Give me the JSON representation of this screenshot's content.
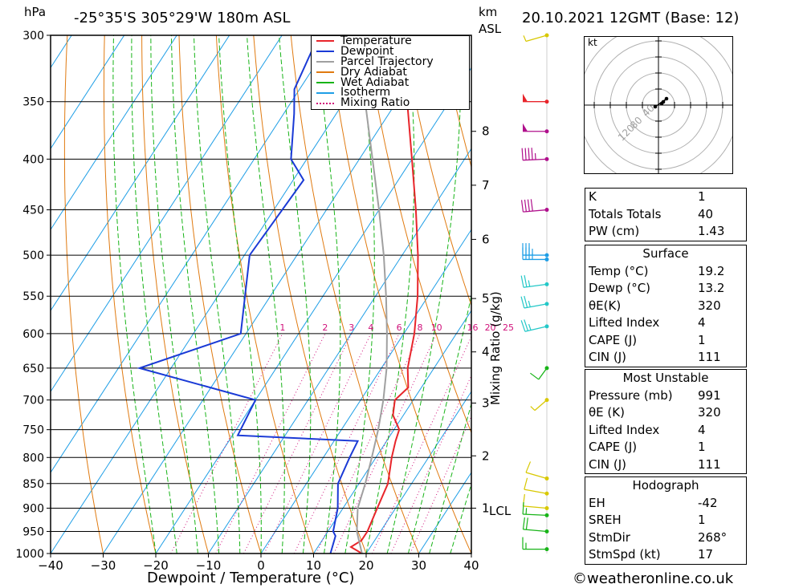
{
  "header": {
    "pressure_unit": "hPa",
    "location": "-25°35'S  305°29'W  180m  ASL",
    "height_unit_top": "km",
    "height_unit_bottom": "ASL",
    "datetime": "20.10.2021  12GMT  (Base: 12)"
  },
  "legend": [
    {
      "label": "Temperature",
      "color": "#e8252b",
      "style": "solid"
    },
    {
      "label": "Dewpoint",
      "color": "#1a3ad6",
      "style": "solid"
    },
    {
      "label": "Parcel Trajectory",
      "color": "#a0a0a0",
      "style": "solid"
    },
    {
      "label": "Dry Adiabat",
      "color": "#e07a10",
      "style": "solid"
    },
    {
      "label": "Wet Adiabat",
      "color": "#18b418",
      "style": "solid"
    },
    {
      "label": "Isotherm",
      "color": "#1e9ee6",
      "style": "solid"
    },
    {
      "label": "Mixing Ratio",
      "color": "#d0107a",
      "style": "dotted"
    }
  ],
  "chart_data": {
    "type": "line",
    "title": "-25°35'S  305°29'W  180m  ASL",
    "xlabel": "Dewpoint / Temperature (°C)",
    "ylabel": "hPa",
    "xlim": [
      -40,
      40
    ],
    "x_ticks": [
      -40,
      -30,
      -20,
      -10,
      0,
      10,
      20,
      30,
      40
    ],
    "pressure_levels": [
      300,
      350,
      400,
      450,
      500,
      550,
      600,
      650,
      700,
      750,
      800,
      850,
      900,
      950,
      1000
    ],
    "height_ticks_km": [
      {
        "label": "8",
        "p": 375
      },
      {
        "label": "7",
        "p": 425
      },
      {
        "label": "6",
        "p": 482
      },
      {
        "label": "5",
        "p": 553
      },
      {
        "label": "4",
        "p": 626
      },
      {
        "label": "3",
        "p": 705
      },
      {
        "label": "2",
        "p": 797
      },
      {
        "label": "1",
        "p": 900
      }
    ],
    "lcl_label": "LCL",
    "lcl_p": 900,
    "mixing_ratio_axis_label": "Mixing Ratio (g/kg)",
    "mixing_ratio_labels": [
      "1",
      "2",
      "3",
      "4",
      "6",
      "8",
      "10",
      "16",
      "20",
      "25"
    ],
    "series": [
      {
        "name": "Temperature",
        "color": "#e8252b",
        "points": [
          [
            1000,
            19.2
          ],
          [
            985,
            16.3
          ],
          [
            970,
            17.5
          ],
          [
            950,
            17.5
          ],
          [
            900,
            16.5
          ],
          [
            850,
            15.5
          ],
          [
            800,
            13
          ],
          [
            770,
            11.7
          ],
          [
            750,
            11
          ],
          [
            725,
            8
          ],
          [
            700,
            6.5
          ],
          [
            680,
            7.5
          ],
          [
            650,
            5
          ],
          [
            600,
            2
          ],
          [
            550,
            -2
          ],
          [
            500,
            -7
          ],
          [
            450,
            -13
          ],
          [
            400,
            -20
          ],
          [
            350,
            -28
          ],
          [
            300,
            -35
          ]
        ]
      },
      {
        "name": "Dewpoint",
        "color": "#1a3ad6",
        "points": [
          [
            1000,
            13.2
          ],
          [
            960,
            12
          ],
          [
            950,
            11
          ],
          [
            900,
            9
          ],
          [
            850,
            6
          ],
          [
            800,
            5
          ],
          [
            770,
            4.5
          ],
          [
            760,
            -19
          ],
          [
            700,
            -20
          ],
          [
            650,
            -46
          ],
          [
            600,
            -31
          ],
          [
            500,
            -39
          ],
          [
            420,
            -38
          ],
          [
            400,
            -43
          ],
          [
            360,
            -48
          ],
          [
            340,
            -51
          ],
          [
            300,
            -53
          ]
        ]
      },
      {
        "name": "Parcel Trajectory",
        "color": "#a0a0a0",
        "points": [
          [
            1000,
            19.2
          ],
          [
            950,
            15.5
          ],
          [
            900,
            12.8
          ],
          [
            850,
            11.2
          ],
          [
            800,
            9.2
          ],
          [
            750,
            7
          ],
          [
            700,
            4.3
          ],
          [
            650,
            1
          ],
          [
            600,
            -3.2
          ],
          [
            550,
            -8
          ],
          [
            500,
            -13.5
          ],
          [
            450,
            -20
          ],
          [
            400,
            -27.5
          ],
          [
            350,
            -36
          ],
          [
            320,
            -42
          ]
        ]
      }
    ]
  },
  "wind_barbs": [
    {
      "p": 300,
      "speed": 5,
      "dir": 240,
      "color": "#d8c800"
    },
    {
      "p": 350,
      "speed": 50,
      "dir": 270,
      "color": "#e8252b"
    },
    {
      "p": 375,
      "speed": 50,
      "dir": 270,
      "color": "#b0108c"
    },
    {
      "p": 400,
      "speed": 45,
      "dir": 265,
      "color": "#b0108c"
    },
    {
      "p": 450,
      "speed": 40,
      "dir": 260,
      "color": "#b0108c"
    },
    {
      "p": 500,
      "speed": 35,
      "dir": 270,
      "color": "#1e9ee6"
    },
    {
      "p": 505,
      "speed": 35,
      "dir": 270,
      "color": "#1e9ee6"
    },
    {
      "p": 535,
      "speed": 25,
      "dir": 255,
      "color": "#24c8c8"
    },
    {
      "p": 560,
      "speed": 25,
      "dir": 250,
      "color": "#24c8c8"
    },
    {
      "p": 590,
      "speed": 25,
      "dir": 245,
      "color": "#24c8c8"
    },
    {
      "p": 650,
      "speed": 10,
      "dir": 200,
      "color": "#18b418"
    },
    {
      "p": 700,
      "speed": 5,
      "dir": 210,
      "color": "#d8c800"
    },
    {
      "p": 840,
      "speed": 10,
      "dir": 300,
      "color": "#d8c800"
    },
    {
      "p": 870,
      "speed": 10,
      "dir": 290,
      "color": "#d8c800"
    },
    {
      "p": 900,
      "speed": 10,
      "dir": 280,
      "color": "#d8c800"
    },
    {
      "p": 915,
      "speed": 15,
      "dir": 275,
      "color": "#18b418"
    },
    {
      "p": 950,
      "speed": 20,
      "dir": 280,
      "color": "#18b418"
    },
    {
      "p": 990,
      "speed": 15,
      "dir": 270,
      "color": "#18b418"
    }
  ],
  "hodograph": {
    "unit": "kt",
    "ring_labels": [
      "40",
      "80",
      "120"
    ],
    "points_kt": [
      [
        4,
        2
      ],
      [
        6,
        4
      ],
      [
        10,
        8
      ],
      [
        -4,
        -2
      ]
    ]
  },
  "indices": {
    "summary": [
      {
        "label": "K",
        "value": "1"
      },
      {
        "label": "Totals Totals",
        "value": "40"
      },
      {
        "label": "PW (cm)",
        "value": "1.43"
      }
    ],
    "surface_title": "Surface",
    "surface": [
      {
        "label": "Temp (°C)",
        "value": "19.2"
      },
      {
        "label": "Dewp (°C)",
        "value": "13.2"
      },
      {
        "label": "θE(K)",
        "value": "320"
      },
      {
        "label": "Lifted Index",
        "value": "4"
      },
      {
        "label": "CAPE (J)",
        "value": "1"
      },
      {
        "label": "CIN (J)",
        "value": "111"
      }
    ],
    "most_unstable_title": "Most Unstable",
    "most_unstable": [
      {
        "label": "Pressure (mb)",
        "value": "991"
      },
      {
        "label": "θE (K)",
        "value": "320"
      },
      {
        "label": "Lifted Index",
        "value": "4"
      },
      {
        "label": "CAPE (J)",
        "value": "1"
      },
      {
        "label": "CIN (J)",
        "value": "111"
      }
    ],
    "hodograph_title": "Hodograph",
    "hodograph": [
      {
        "label": "EH",
        "value": "-42"
      },
      {
        "label": "SREH",
        "value": "1"
      },
      {
        "label": "StmDir",
        "value": "268°"
      },
      {
        "label": "StmSpd (kt)",
        "value": "17"
      }
    ]
  },
  "footer": {
    "copyright": "©weatheronline.co.uk"
  }
}
